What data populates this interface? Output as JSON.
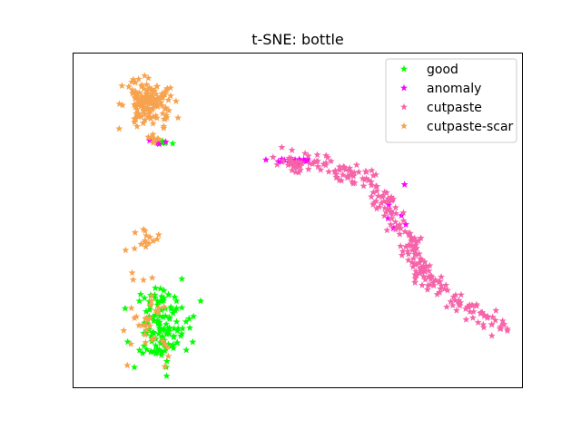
{
  "chart_data": {
    "type": "scatter",
    "title": "t-SNE: bottle",
    "xlabel": "",
    "ylabel": "",
    "xlim": [
      0,
      100
    ],
    "ylim": [
      0,
      100
    ],
    "grid": false,
    "axis_ticks": false,
    "marker": "star",
    "legend": {
      "placement": "top-right"
    },
    "series": [
      {
        "name": "good",
        "color": "#00ff00",
        "clusters": [
          {
            "center": [
              19.5,
              18.5
            ],
            "spread": [
              5.5,
              10.5
            ],
            "count": 130
          },
          {
            "center": [
              19.0,
              73.5
            ],
            "spread": [
              2.5,
              0.8
            ],
            "count": 8
          }
        ]
      },
      {
        "name": "anomaly",
        "color": "#ff00ff",
        "clusters": [
          {
            "center": [
              19.0,
              73.5
            ],
            "spread": [
              3.0,
              1.0
            ],
            "count": 5
          },
          {
            "center": [
              49.0,
              67.5
            ],
            "spread": [
              4.5,
              0.8
            ],
            "count": 30
          },
          {
            "center": [
              72.0,
              52.0
            ],
            "spread": [
              3.0,
              8.0
            ],
            "count": 10
          }
        ]
      },
      {
        "name": "cutpaste",
        "color": "#f564a9",
        "path": [
          [
            46,
            67.8
          ],
          [
            56,
            66.0
          ],
          [
            66,
            62.0
          ],
          [
            71,
            52.0
          ],
          [
            75,
            42.0
          ],
          [
            78,
            33.5
          ],
          [
            87,
            24.0
          ],
          [
            96,
            17.5
          ]
        ],
        "spread": 1.2,
        "count": 260
      },
      {
        "name": "cutpaste-scar",
        "color": "#f7a24e",
        "clusters": [
          {
            "center": [
              16.5,
              85.0
            ],
            "spread": [
              5.0,
              7.0
            ],
            "count": 150
          },
          {
            "center": [
              17.0,
              20.0
            ],
            "spread": [
              5.0,
              10.0
            ],
            "count": 35
          },
          {
            "center": [
              17.0,
              45.0
            ],
            "spread": [
              4.5,
              3.0
            ],
            "count": 15
          },
          {
            "center": [
              18.0,
              74.0
            ],
            "spread": [
              2.5,
              1.0
            ],
            "count": 6
          }
        ]
      }
    ]
  }
}
